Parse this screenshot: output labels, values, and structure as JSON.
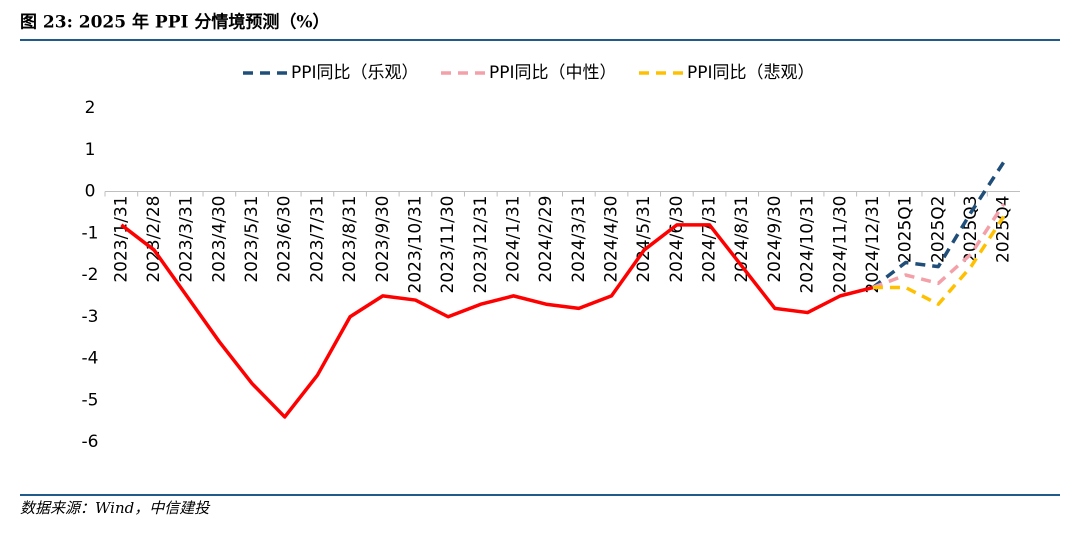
{
  "chart_data": {
    "type": "line",
    "title": "图 23: 2025 年  PPI 分情境预测（%）",
    "categories": [
      "2023/1/31",
      "2023/2/28",
      "2023/3/31",
      "2023/4/30",
      "2023/5/31",
      "2023/6/30",
      "2023/7/31",
      "2023/8/31",
      "2023/9/30",
      "2023/10/31",
      "2023/11/30",
      "2023/12/31",
      "2024/1/31",
      "2024/2/29",
      "2024/3/31",
      "2024/4/30",
      "2024/5/31",
      "2024/6/30",
      "2024/7/31",
      "2024/8/31",
      "2024/9/30",
      "2024/10/31",
      "2024/11/30",
      "2024/12/31",
      "2025Q1",
      "2025Q2",
      "2025Q3",
      "2025Q4"
    ],
    "series": [
      {
        "color": "#ff0000",
        "dashed": false,
        "values": [
          -0.8,
          -1.4,
          -2.5,
          -3.6,
          -4.6,
          -5.4,
          -4.4,
          -3.0,
          -2.5,
          -2.6,
          -3.0,
          -2.7,
          -2.5,
          -2.7,
          -2.8,
          -2.5,
          -1.4,
          -0.8,
          -0.8,
          -1.8,
          -2.8,
          -2.9,
          -2.5,
          -2.3,
          null,
          null,
          null,
          null
        ]
      },
      {
        "name": "PPI同比（乐观）",
        "color": "#1f4e79",
        "dashed": true,
        "values": [
          null,
          null,
          null,
          null,
          null,
          null,
          null,
          null,
          null,
          null,
          null,
          null,
          null,
          null,
          null,
          null,
          null,
          null,
          null,
          null,
          null,
          null,
          null,
          -2.3,
          -1.7,
          -1.8,
          -0.5,
          0.7
        ]
      },
      {
        "name": "PPI同比（中性）",
        "color": "#f4a0a8",
        "dashed": true,
        "values": [
          null,
          null,
          null,
          null,
          null,
          null,
          null,
          null,
          null,
          null,
          null,
          null,
          null,
          null,
          null,
          null,
          null,
          null,
          null,
          null,
          null,
          null,
          null,
          -2.3,
          -2.0,
          -2.2,
          -1.5,
          -0.3
        ]
      },
      {
        "name": "PPI同比（悲观）",
        "color": "#ffc000",
        "dashed": true,
        "values": [
          null,
          null,
          null,
          null,
          null,
          null,
          null,
          null,
          null,
          null,
          null,
          null,
          null,
          null,
          null,
          null,
          null,
          null,
          null,
          null,
          null,
          null,
          null,
          -2.3,
          -2.3,
          -2.7,
          -1.8,
          -0.6
        ]
      }
    ],
    "ylim": [
      -6,
      2
    ],
    "yticks": [
      -6,
      -5,
      -4,
      -3,
      -2,
      -1,
      0,
      1,
      2
    ],
    "legend": "top"
  },
  "source": "数据来源：Wind，中信建投"
}
